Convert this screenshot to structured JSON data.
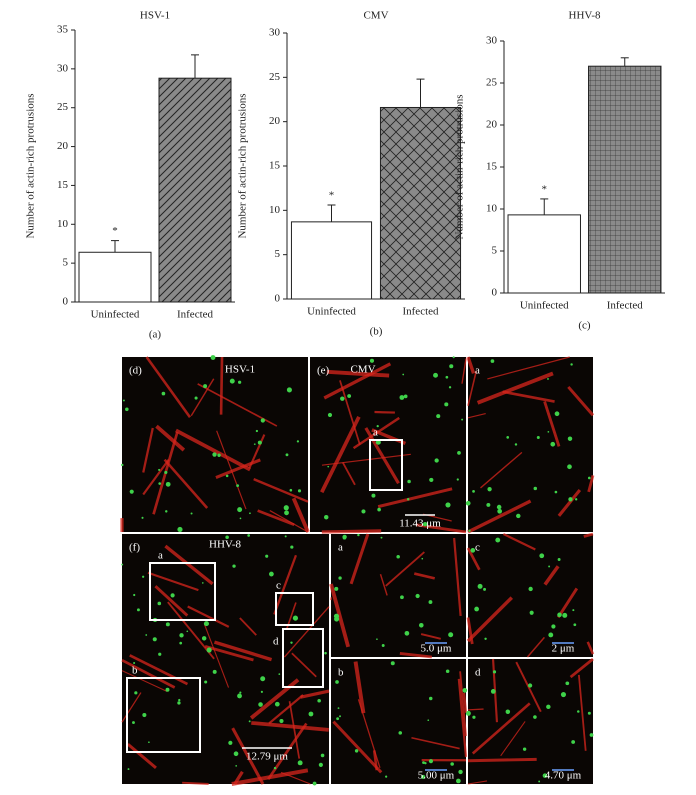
{
  "chart_data": [
    {
      "type": "bar",
      "title": "HSV-1",
      "ylabel": "Number of actin-rich protrusions",
      "categories": [
        "Uninfected",
        "Infected"
      ],
      "values": [
        6.4,
        28.8
      ],
      "errors": [
        1.5,
        3.0
      ],
      "colors": [
        "#ffffff",
        "#8a8a8a"
      ],
      "patterns": [
        "none",
        "diagonal"
      ],
      "annotation": "*",
      "ylim": [
        0,
        35
      ],
      "yticks": [
        0,
        5,
        10,
        15,
        20,
        25,
        30,
        35
      ],
      "caption": "(a)"
    },
    {
      "type": "bar",
      "title": "CMV",
      "ylabel": "Number of actin-rich protrusions",
      "categories": [
        "Uninfected",
        "Infected"
      ],
      "values": [
        8.7,
        21.6
      ],
      "errors": [
        1.9,
        3.2
      ],
      "colors": [
        "#ffffff",
        "#8a8a8a"
      ],
      "patterns": [
        "none",
        "cross"
      ],
      "annotation": "*",
      "ylim": [
        0,
        30
      ],
      "yticks": [
        0,
        5,
        10,
        15,
        20,
        25,
        30
      ],
      "caption": "(b)"
    },
    {
      "type": "bar",
      "title": "HHV-8",
      "ylabel": "Number of actin-rich protrusions",
      "categories": [
        "Uninfected",
        "Infected"
      ],
      "values": [
        9.3,
        27.0
      ],
      "errors": [
        1.9,
        1.0
      ],
      "colors": [
        "#ffffff",
        "#8a8a8a"
      ],
      "patterns": [
        "none",
        "grid"
      ],
      "annotation": "*",
      "ylim": [
        0,
        30
      ],
      "yticks": [
        0,
        5,
        10,
        15,
        20,
        25,
        30
      ],
      "caption": "(c)"
    }
  ],
  "image_panels": [
    {
      "label": "(d)",
      "title": "HSV-1"
    },
    {
      "label": "(e)",
      "title": "CMV",
      "insets": [
        "a"
      ],
      "scale": "11.43 μm"
    },
    {
      "label": "a"
    },
    {
      "label": "(f)",
      "title": "HHV-8",
      "insets": [
        "a",
        "b",
        "c",
        "d"
      ],
      "scale": "12.79 μm"
    },
    {
      "label": "a",
      "scale": "5.0 μm"
    },
    {
      "label": "c",
      "scale": "2 μm"
    },
    {
      "label": "b",
      "scale": "5.00 μm"
    },
    {
      "label": "d",
      "scale": "4.70 μm"
    }
  ]
}
